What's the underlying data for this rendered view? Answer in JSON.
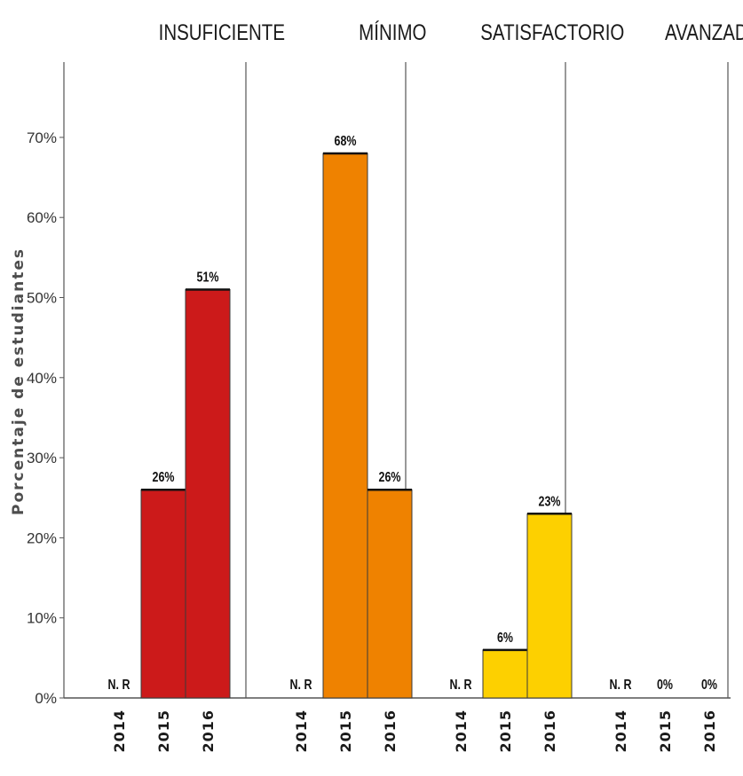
{
  "chart_data": {
    "type": "bar",
    "ylabel": "Porcentaje de estudiantes",
    "ylim": [
      0,
      80
    ],
    "yticks": [
      "0%",
      "10%",
      "20%",
      "30%",
      "40%",
      "50%",
      "60%",
      "70%"
    ],
    "categories": [
      "2014",
      "2015",
      "2016"
    ],
    "panels": [
      {
        "name": "INSUFICIENTE",
        "color": "#cc1a1a",
        "values": [
          null,
          26,
          51
        ],
        "labels": [
          "N. R",
          "26%",
          "51%"
        ]
      },
      {
        "name": "MÍNIMO",
        "color": "#ef8200",
        "values": [
          null,
          68,
          26
        ],
        "labels": [
          "N. R",
          "68%",
          "26%"
        ]
      },
      {
        "name": "SATISFACTORIO",
        "color": "#fdd000",
        "values": [
          null,
          6,
          23
        ],
        "labels": [
          "N. R",
          "6%",
          "23%"
        ]
      },
      {
        "name": "AVANZADO",
        "color": "#999999",
        "values": [
          null,
          0,
          0
        ],
        "labels": [
          "N. R",
          "0%",
          "0%"
        ]
      }
    ],
    "grid": false,
    "legend": "none"
  }
}
